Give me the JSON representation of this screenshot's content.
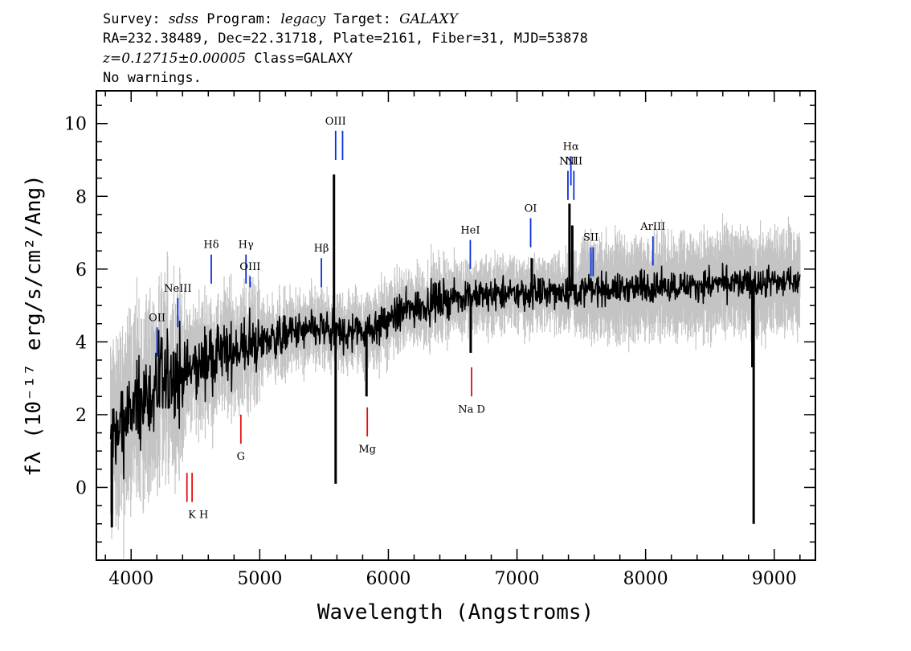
{
  "header": {
    "line1": {
      "survey_label": "Survey: ",
      "survey": "sdss",
      "program_label": " Program: ",
      "program": "legacy",
      "target_label": " Target: ",
      "target": "GALAXY"
    },
    "line2": "RA=232.38489, Dec=22.31718, Plate=2161, Fiber=31, MJD=53878",
    "line3": {
      "redshift": "z=0.12715±0.00005",
      "class_text": " Class=GALAXY"
    },
    "line4": "No warnings."
  },
  "chart_data": {
    "type": "line",
    "xlabel": "Wavelength (Angstroms)",
    "ylabel": "fλ (10⁻¹⁷ erg/s/cm²/Ang)",
    "xlim": [
      3730,
      9320
    ],
    "ylim": [
      -2.0,
      10.9
    ],
    "x_ticks": [
      4000,
      5000,
      6000,
      7000,
      8000,
      9000
    ],
    "y_ticks": [
      0,
      2,
      4,
      6,
      8,
      10
    ],
    "grid": false,
    "colors": {
      "flux": "#000000",
      "error": "#c4c4c4",
      "emission": "#0a2fd6",
      "absorption": "#e01010"
    },
    "series": [
      {
        "name": "",
        "x": [
          3840,
          3900,
          3950,
          4000,
          4050,
          4100,
          4150,
          4200,
          4250,
          4300,
          4350,
          4400,
          4450,
          4500,
          4550,
          4600,
          4650,
          4700,
          4750,
          4800,
          4850,
          4900,
          4950,
          5000,
          5100,
          5200,
          5300,
          5400,
          5500,
          5600,
          5700,
          5800,
          5900,
          6000,
          6100,
          6200,
          6300,
          6400,
          6500,
          6600,
          6700,
          6800,
          6900,
          7000,
          7100,
          7200,
          7300,
          7400,
          7500,
          7600,
          7700,
          7800,
          7900,
          8000,
          8100,
          8200,
          8300,
          8400,
          8500,
          8600,
          8700,
          8800,
          8900,
          9000,
          9100,
          9200
        ],
        "y": [
          1.2,
          1.5,
          1.8,
          2.0,
          2.2,
          2.4,
          2.6,
          2.7,
          2.8,
          2.9,
          3.0,
          3.1,
          3.2,
          3.3,
          3.4,
          3.5,
          3.6,
          3.65,
          3.7,
          3.75,
          3.8,
          3.85,
          3.9,
          4.0,
          4.1,
          4.2,
          4.25,
          4.3,
          4.35,
          4.2,
          4.3,
          4.3,
          4.4,
          4.6,
          4.8,
          4.95,
          5.05,
          5.15,
          5.2,
          5.25,
          5.25,
          5.3,
          5.3,
          5.3,
          5.35,
          5.35,
          5.35,
          5.4,
          5.4,
          5.45,
          5.45,
          5.45,
          5.5,
          5.5,
          5.5,
          5.55,
          5.55,
          5.55,
          5.6,
          5.6,
          5.6,
          5.6,
          5.6,
          5.65,
          5.65,
          5.7
        ]
      }
    ],
    "spikes": [
      {
        "x": 5577,
        "y": 8.6
      },
      {
        "x": 5590,
        "y": 0.1
      },
      {
        "x": 5830,
        "y": 2.5
      },
      {
        "x": 6640,
        "y": 3.7
      },
      {
        "x": 7115,
        "y": 6.3
      },
      {
        "x": 7408,
        "y": 7.8
      },
      {
        "x": 7430,
        "y": 7.2
      },
      {
        "x": 8830,
        "y": 3.3
      },
      {
        "x": 8840,
        "y": -1.0
      },
      {
        "x": 3850,
        "y": -1.1
      }
    ],
    "emission_lines": [
      {
        "label": "OII",
        "x": 4202,
        "y_bottom": 3.6,
        "y_top": 4.4
      },
      {
        "label": "NeIII",
        "x": 4363,
        "y_bottom": 4.4,
        "y_top": 5.2
      },
      {
        "label": "Hδ",
        "x": 4623,
        "y_bottom": 5.6,
        "y_top": 6.4
      },
      {
        "label": "Hγ",
        "x": 4893,
        "y_bottom": 5.6,
        "y_top": 6.4
      },
      {
        "label": "OIII",
        "x": 4925,
        "y_bottom": 5.5,
        "y_top": 5.8
      },
      {
        "label": "Hβ",
        "x": 5479,
        "y_bottom": 5.5,
        "y_top": 6.3
      },
      {
        "label": "OIII",
        "x": 5590,
        "y_bottom": 9.0,
        "y_top": 9.8
      },
      {
        "label": "",
        "x": 5644,
        "y_bottom": 9.0,
        "y_top": 9.8
      },
      {
        "label": "HeI",
        "x": 6637,
        "y_bottom": 6.0,
        "y_top": 6.8
      },
      {
        "label": "OI",
        "x": 7106,
        "y_bottom": 6.6,
        "y_top": 7.4
      },
      {
        "label": "NII",
        "x": 7396,
        "y_bottom": 7.9,
        "y_top": 8.7
      },
      {
        "label": "Hα",
        "x": 7419,
        "y_bottom": 8.3,
        "y_top": 9.1
      },
      {
        "label": "NII",
        "x": 7442,
        "y_bottom": 7.9,
        "y_top": 8.7
      },
      {
        "label": "SII",
        "x": 7575,
        "y_bottom": 5.8,
        "y_top": 6.6
      },
      {
        "label": "",
        "x": 7592,
        "y_bottom": 5.8,
        "y_top": 6.6
      },
      {
        "label": "ArIII",
        "x": 8057,
        "y_bottom": 6.1,
        "y_top": 6.9
      }
    ],
    "absorption_lines": [
      {
        "label": "K H",
        "x": 4434,
        "y_bottom": -0.4,
        "y_top": 0.4
      },
      {
        "label": "",
        "x": 4474,
        "y_bottom": -0.4,
        "y_top": 0.4
      },
      {
        "label": "G",
        "x": 4853,
        "y_bottom": 1.2,
        "y_top": 2.0
      },
      {
        "label": "Mg",
        "x": 5836,
        "y_bottom": 1.4,
        "y_top": 2.2
      },
      {
        "label": "Na D",
        "x": 6647,
        "y_bottom": 2.5,
        "y_top": 3.3
      }
    ]
  }
}
